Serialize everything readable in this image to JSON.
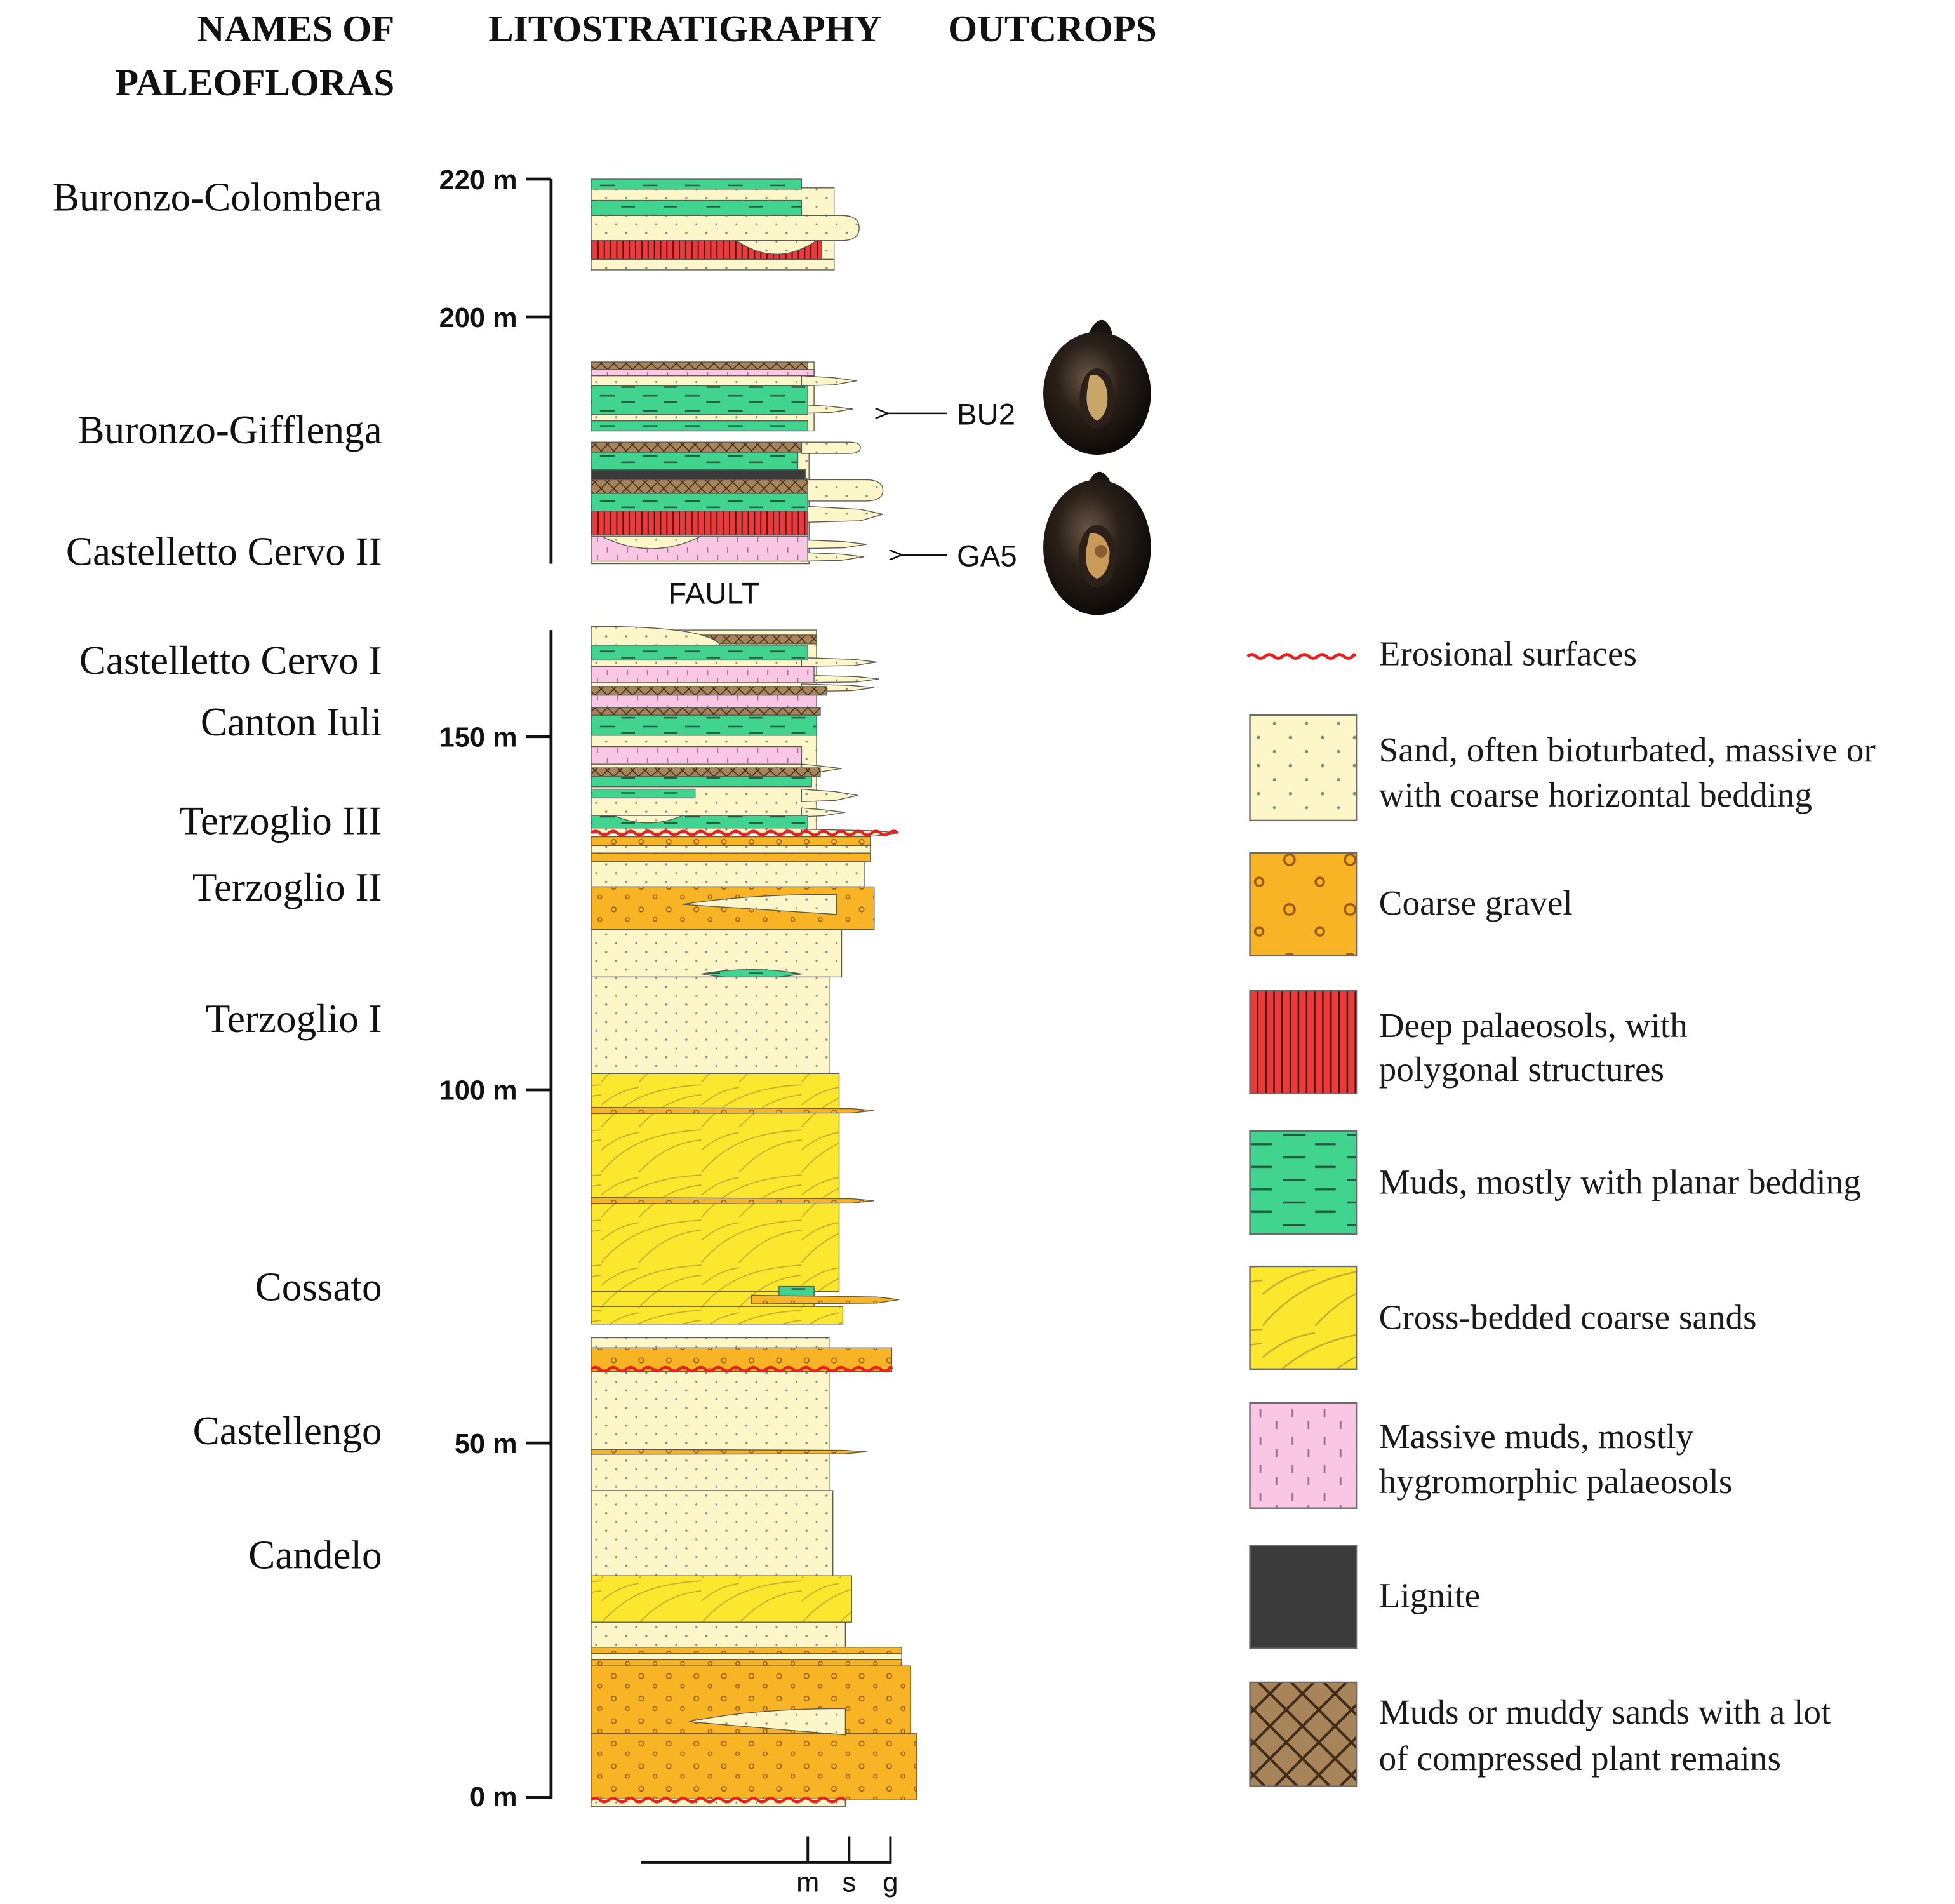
{
  "headers": {
    "names": [
      "NAMES OF",
      "PALEOFLORAS"
    ],
    "lithostratigraphy": "LITOSTRATIGRAPHY",
    "outcrops": "OUTCROPS"
  },
  "paleofloras": [
    "Buronzo-Colombera",
    "Buronzo-Gifflenga",
    "Castelletto Cervo II",
    "Castelletto Cervo I",
    "Canton Iuli",
    "Terzoglio III",
    "Terzoglio II",
    "Terzoglio I",
    "Cossato",
    "Castellengo",
    "Candelo"
  ],
  "depth_axis": {
    "ticks": [
      "220 m",
      "200 m",
      "150 m",
      "100 m",
      "50 m",
      "0 m"
    ]
  },
  "fault_label": "FAULT",
  "outcrops": [
    "BU2",
    "GA5"
  ],
  "grain_size_scale": [
    "m",
    "s",
    "g"
  ],
  "legend": [
    [
      "Erosional surfaces"
    ],
    [
      "Sand, often bioturbated, massive or",
      "with coarse horizontal bedding"
    ],
    [
      "Coarse gravel"
    ],
    [
      "Deep palaeosols, with",
      "polygonal structures"
    ],
    [
      "Muds, mostly with planar bedding"
    ],
    [
      "Cross-bedded coarse sands"
    ],
    [
      "Massive muds, mostly",
      "hygromorphic palaeosols"
    ],
    [
      "Lignite"
    ],
    [
      "Muds or muddy sands with a lot",
      "of compressed plant remains"
    ]
  ],
  "colors": {
    "erosion": "#e8201f",
    "sand": "#fcf6c8",
    "gravel": "#f8b425",
    "palaeosol": "#ea3a3c",
    "mud": "#40d48f",
    "cross_bedded": "#fbe82e",
    "massive_mud": "#f9c6e4",
    "lignite": "#3b3b3b",
    "plant_mud": "#a7845a"
  }
}
